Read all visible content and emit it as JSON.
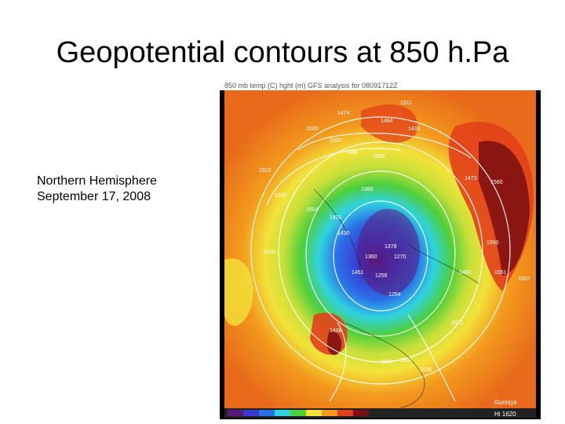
{
  "slide": {
    "title": "Geopotential contours at 850 h.Pa",
    "caption": {
      "line1": "Northern Hemisphere",
      "line2": "September 17, 2008"
    }
  },
  "map": {
    "header_text": "850 mb temp (C) hght (m) GFS analysis for 08091712Z",
    "footer_text": "Hi 1620",
    "credit": "©unisys",
    "contour_labels": [
      "1474",
      "1484",
      "1433",
      "1500",
      "1507",
      "1486",
      "1530",
      "1473",
      "1560",
      "1522",
      "1549",
      "1504",
      "1421",
      "1430",
      "1380",
      "1378",
      "1270",
      "1360",
      "1256",
      "1254",
      "1479",
      "1451",
      "1482",
      "1550",
      "1551",
      "1502",
      "1521",
      "1438",
      "1540",
      "1537",
      "1530",
      "1511"
    ],
    "colors": {
      "purple": "#5a1a78",
      "blue": "#2b4fd8",
      "cyan": "#2fd3e0",
      "green": "#4fcf3a",
      "yellow": "#f2e23a",
      "orange": "#f39a1e",
      "red": "#e2401a",
      "darkred": "#7a0e12"
    }
  }
}
